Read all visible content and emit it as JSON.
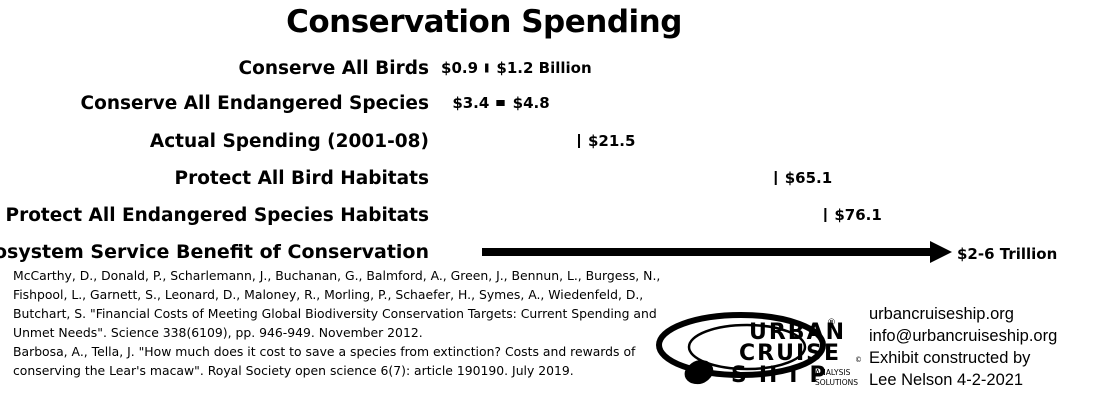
{
  "chart_data": {
    "type": "bar",
    "title": "Conservation Spending",
    "unit": "Billion USD",
    "categories": [
      "Conserve All Birds",
      "Conserve All Endangered Species",
      "Actual Spending (2001-08)",
      "Protect All Bird Habitats",
      "Protect All Endangered Species Habitats"
    ],
    "ranges": [
      {
        "low": 0.9,
        "high": 1.2,
        "low_label": "$0.9",
        "high_label": "$1.2 Billion"
      },
      {
        "low": 3.4,
        "high": 4.8,
        "low_label": "$3.4",
        "high_label": "$4.8"
      },
      {
        "low": 21.5,
        "high": 21.5,
        "low_label": "",
        "high_label": "$21.5"
      },
      {
        "low": 65.1,
        "high": 65.1,
        "low_label": "",
        "high_label": "$65.1"
      },
      {
        "low": 76.1,
        "high": 76.1,
        "low_label": "",
        "high_label": "$76.1"
      }
    ],
    "benefit": {
      "label": "Ecosystem Service Benefit of Conservation",
      "value_label": "$2-6 Trillion",
      "low": 2000,
      "high": 6000
    },
    "xlim": [
      0,
      100
    ],
    "grid": false,
    "legend": "none"
  },
  "references": [
    "McCarthy, D., Donald, P., Scharlemann, J., Buchanan, G., Balmford, A., Green, J., Bennun, L., Burgess, N., Fishpool, L., Garnett, S., Leonard, D., Maloney, R., Morling, P., Schaefer, H., Symes, A., Wiedenfeld, D., Butchart, S. \"Financial Costs of Meeting Global Biodiversity Conservation Targets: Current Spending and Unmet Needs\". Science 338(6109), pp. 946-949. November 2012.",
    "Barbosa, A., Tella, J. \"How much does it cost to save a species from extinction? Costs and rewards of conserving the Lear's macaw\". Royal Society open science 6(7): article 190190. July 2019."
  ],
  "logo": {
    "line1": "URBAN",
    "line2": "CRUISE",
    "line3": "SHIP",
    "reg": "®",
    "copyright": "©",
    "sub1": "ANALYSIS",
    "sub2": "SOLUTIONS"
  },
  "contact": {
    "website": "urbancruiseship.org",
    "email": "info@urbancruiseship.org",
    "credit_line1": "Exhibit constructed by",
    "credit_line2": "Lee Nelson 4-2-2021"
  }
}
